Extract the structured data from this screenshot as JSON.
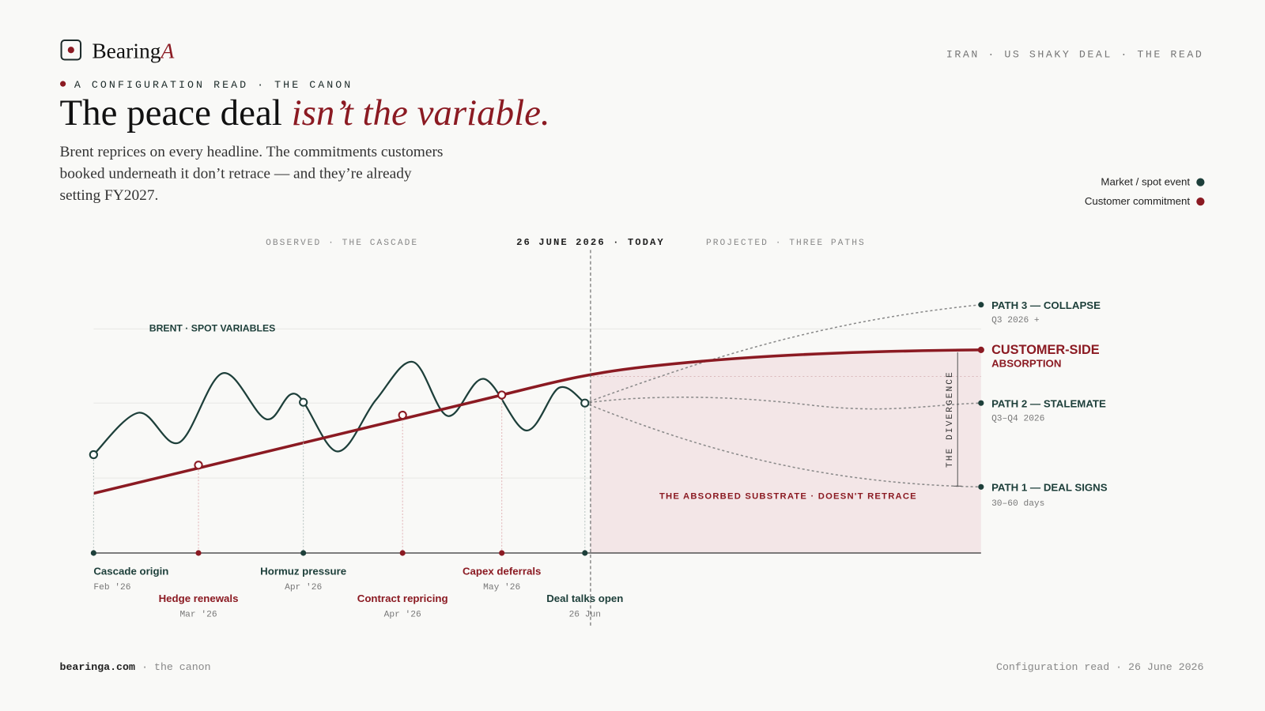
{
  "brand": {
    "name": "Bearing",
    "mark": "A"
  },
  "header": {
    "kicker": "IRAN · US SHAKY DEAL · THE READ",
    "eyebrow": "A CONFIGURATION READ · THE CANON",
    "title_plain": "The peace deal ",
    "title_em": "isn’t the variable.",
    "subtitle": [
      "Brent reprices on every headline. The commitments customers",
      "booked underneath it don’t retrace — and they’re already",
      "setting FY2027."
    ]
  },
  "legend": [
    "Market / spot event",
    "Customer commitment"
  ],
  "sections": {
    "observed": "OBSERVED · THE CASCADE",
    "today": "26 JUNE 2026 · TODAY",
    "projected": "PROJECTED · THREE PATHS"
  },
  "brent_label": "BRENT · SPOT VARIABLES",
  "paths": [
    {
      "label": "PATH 3 — COLLAPSE",
      "sub": "Q3 2026 +"
    },
    {
      "label": "PATH 2 — STALEMATE",
      "sub": "Q3–Q4 2026"
    },
    {
      "label": "PATH 1 — DEAL SIGNS",
      "sub": "30–60 days"
    }
  ],
  "absorption": [
    "CUSTOMER-SIDE",
    "ABSORPTION"
  ],
  "divergence": "THE DIVERGENCE",
  "substrate": "THE ABSORBED SUBSTRATE · DOESN'T RETRACE",
  "events": [
    {
      "label": "Cascade origin",
      "date": "Feb '26"
    },
    {
      "label": "Hedge renewals",
      "date": "Mar '26"
    },
    {
      "label": "Hormuz pressure",
      "date": "Apr '26"
    },
    {
      "label": "Contract repricing",
      "date": "Apr '26"
    },
    {
      "label": "Capex deferrals",
      "date": "May '26"
    },
    {
      "label": "Deal talks open",
      "date": "26 Jun"
    }
  ],
  "footer": {
    "site": "bearinga.com",
    "site_note": "· the canon",
    "right": "Configuration read · 26 June 2026"
  }
}
